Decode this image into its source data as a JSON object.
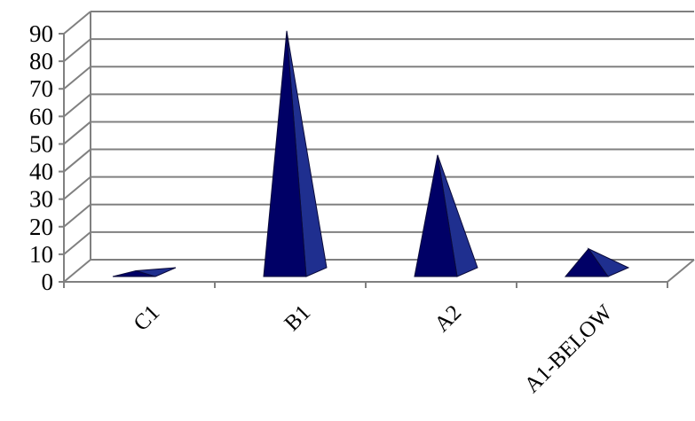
{
  "chart_data": {
    "type": "bar",
    "style": "3d-pyramid",
    "categories": [
      "C1",
      "B1",
      "A2",
      "A1-BELOW"
    ],
    "values": [
      2,
      89,
      44,
      10
    ],
    "ylim": [
      0,
      90
    ],
    "yticks": [
      0,
      10,
      20,
      30,
      40,
      50,
      60,
      70,
      80,
      90
    ],
    "grid": true,
    "legend": "none",
    "colors": {
      "bar_front": "#000066",
      "bar_side": "#1f2f8f",
      "bar_edge": "#0a0a3a",
      "grid": "#808080",
      "axis": "#808080"
    }
  }
}
